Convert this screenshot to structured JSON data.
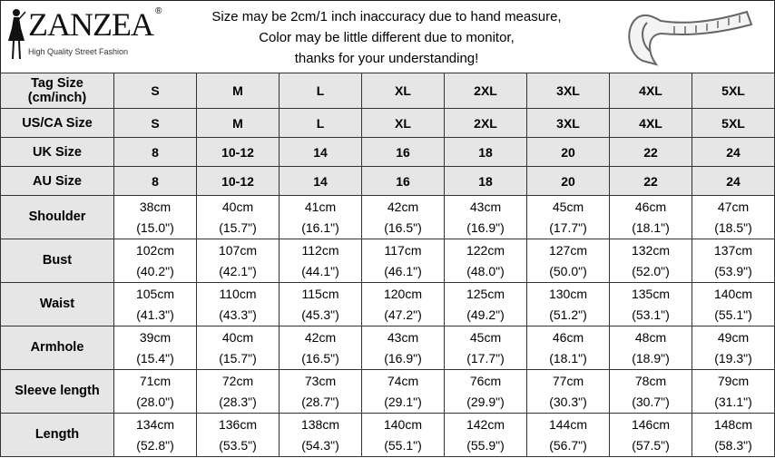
{
  "brand": {
    "name": "ZANZEA",
    "registered": "®",
    "tagline": "High Quality Street Fashion"
  },
  "notice": [
    "Size may be 2cm/1 inch inaccuracy due to hand measure,",
    "Color may be little different due to monitor,",
    "thanks for your understanding!"
  ],
  "icons": {
    "figure": "woman-silhouette-icon",
    "tape": "measuring-tape-icon"
  },
  "colors": {
    "header_bg": "#e6e6e6",
    "border": "#333333"
  },
  "size_rows": [
    {
      "label_line1": "Tag Size",
      "label_line2": "(cm/inch)",
      "values": [
        "S",
        "M",
        "L",
        "XL",
        "2XL",
        "3XL",
        "4XL",
        "5XL"
      ]
    },
    {
      "label_line1": "US/CA Size",
      "label_line2": "",
      "values": [
        "S",
        "M",
        "L",
        "XL",
        "2XL",
        "3XL",
        "4XL",
        "5XL"
      ]
    },
    {
      "label_line1": "UK Size",
      "label_line2": "",
      "values": [
        "8",
        "10-12",
        "14",
        "16",
        "18",
        "20",
        "22",
        "24"
      ]
    },
    {
      "label_line1": "AU Size",
      "label_line2": "",
      "values": [
        "8",
        "10-12",
        "14",
        "16",
        "18",
        "20",
        "22",
        "24"
      ]
    }
  ],
  "measurement_rows": [
    {
      "label": "Shoulder",
      "cm": [
        "38cm",
        "40cm",
        "41cm",
        "42cm",
        "43cm",
        "45cm",
        "46cm",
        "47cm"
      ],
      "inch": [
        "(15.0\")",
        "(15.7\")",
        "(16.1\")",
        "(16.5\")",
        "(16.9\")",
        "(17.7\")",
        "(18.1\")",
        "(18.5\")"
      ]
    },
    {
      "label": "Bust",
      "cm": [
        "102cm",
        "107cm",
        "112cm",
        "117cm",
        "122cm",
        "127cm",
        "132cm",
        "137cm"
      ],
      "inch": [
        "(40.2\")",
        "(42.1\")",
        "(44.1\")",
        "(46.1\")",
        "(48.0\")",
        "(50.0\")",
        "(52.0\")",
        "(53.9\")"
      ]
    },
    {
      "label": "Waist",
      "cm": [
        "105cm",
        "110cm",
        "115cm",
        "120cm",
        "125cm",
        "130cm",
        "135cm",
        "140cm"
      ],
      "inch": [
        "(41.3\")",
        "(43.3\")",
        "(45.3\")",
        "(47.2\")",
        "(49.2\")",
        "(51.2\")",
        "(53.1\")",
        "(55.1\")"
      ]
    },
    {
      "label": "Armhole",
      "cm": [
        "39cm",
        "40cm",
        "42cm",
        "43cm",
        "45cm",
        "46cm",
        "48cm",
        "49cm"
      ],
      "inch": [
        "(15.4\")",
        "(15.7\")",
        "(16.5\")",
        "(16.9\")",
        "(17.7\")",
        "(18.1\")",
        "(18.9\")",
        "(19.3\")"
      ]
    },
    {
      "label": "Sleeve length",
      "cm": [
        "71cm",
        "72cm",
        "73cm",
        "74cm",
        "76cm",
        "77cm",
        "78cm",
        "79cm"
      ],
      "inch": [
        "(28.0\")",
        "(28.3\")",
        "(28.7\")",
        "(29.1\")",
        "(29.9\")",
        "(30.3\")",
        "(30.7\")",
        "(31.1\")"
      ]
    },
    {
      "label": "Length",
      "cm": [
        "134cm",
        "136cm",
        "138cm",
        "140cm",
        "142cm",
        "144cm",
        "146cm",
        "148cm"
      ],
      "inch": [
        "(52.8\")",
        "(53.5\")",
        "(54.3\")",
        "(55.1\")",
        "(55.9\")",
        "(56.7\")",
        "(57.5\")",
        "(58.3\")"
      ]
    }
  ]
}
